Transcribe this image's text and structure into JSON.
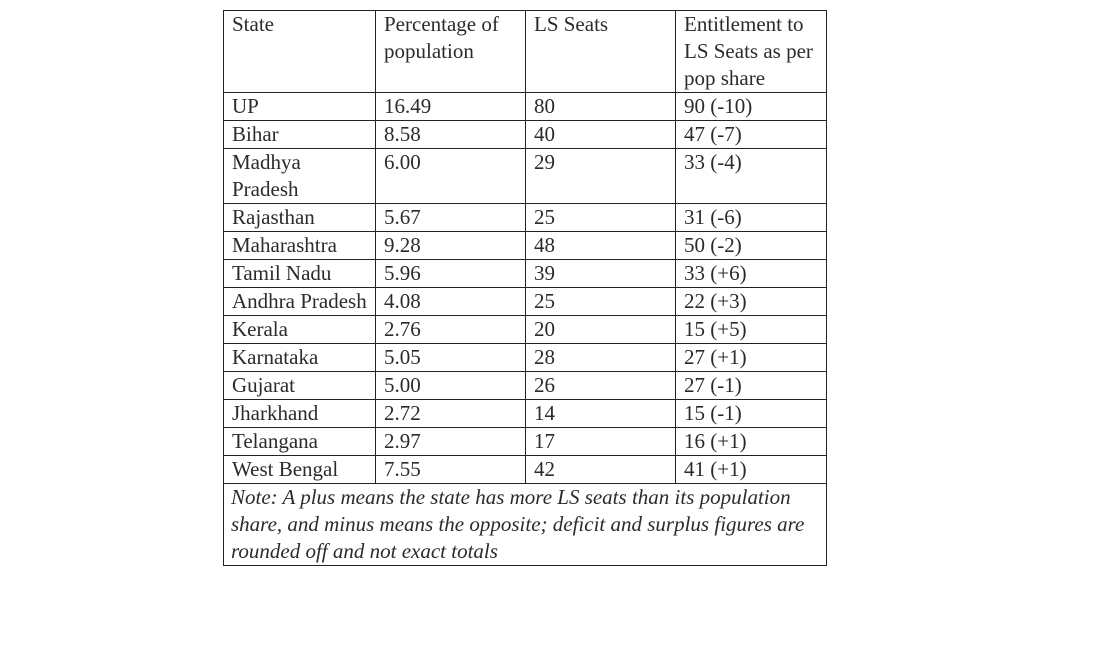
{
  "table": {
    "headers": [
      "State",
      "Percentage of population",
      "LS Seats",
      "Entitlement to LS Seats as per pop share"
    ],
    "rows": [
      [
        "UP",
        "16.49",
        "80",
        "90 (-10)"
      ],
      [
        "Bihar",
        "8.58",
        "40",
        "47 (-7)"
      ],
      [
        "Madhya Pradesh",
        "6.00",
        "29",
        "33 (-4)"
      ],
      [
        "Rajasthan",
        "5.67",
        "25",
        "31 (-6)"
      ],
      [
        "Maharashtra",
        "9.28",
        "48",
        "50 (-2)"
      ],
      [
        "Tamil Nadu",
        "5.96",
        "39",
        "33 (+6)"
      ],
      [
        "Andhra Pradesh",
        "4.08",
        "25",
        "22 (+3)"
      ],
      [
        "Kerala",
        "2.76",
        "20",
        "15 (+5)"
      ],
      [
        "Karnataka",
        "5.05",
        "28",
        "27 (+1)"
      ],
      [
        "Gujarat",
        "5.00",
        "26",
        "27 (-1)"
      ],
      [
        "Jharkhand",
        "2.72",
        "14",
        "15 (-1)"
      ],
      [
        "Telangana",
        "2.97",
        "17",
        "16 (+1)"
      ],
      [
        "West Bengal",
        "7.55",
        "42",
        "41 (+1)"
      ]
    ],
    "note": "Note: A plus means the state has more LS seats than its population share, and minus means the opposite; deficit and surplus figures are rounded off and not exact totals"
  }
}
